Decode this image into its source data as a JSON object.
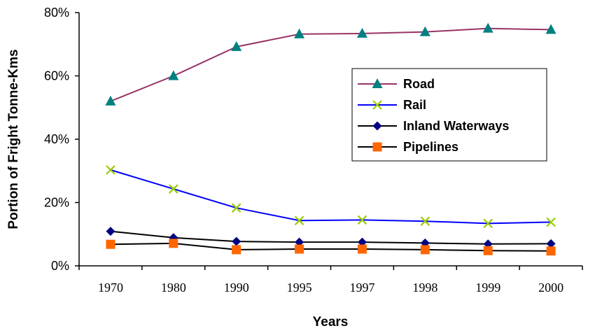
{
  "chart_data": {
    "type": "line",
    "categories": [
      "1970",
      "1980",
      "1990",
      "1995",
      "1997",
      "1998",
      "1999",
      "2000"
    ],
    "y_ticks": [
      "0%",
      "20%",
      "40%",
      "60%",
      "80%"
    ],
    "ylim": [
      0,
      80
    ],
    "xlabel": "Years",
    "ylabel": "Portion of Fright Tonne-Kms",
    "grid": false,
    "legend_position": "right",
    "series": [
      {
        "name": "Road",
        "color": "#993366",
        "marker": "triangle",
        "marker_color": "#008080",
        "values": [
          52,
          60,
          69.2,
          73.2,
          73.4,
          73.9,
          75,
          74.6
        ]
      },
      {
        "name": "Rail",
        "color": "#0000ff",
        "marker": "x",
        "marker_color": "#99cc00",
        "values": [
          30.3,
          24.3,
          18.3,
          14.3,
          14.5,
          14.1,
          13.4,
          13.8
        ]
      },
      {
        "name": "Inland Waterways",
        "color": "#000000",
        "marker": "diamond",
        "marker_color": "#000080",
        "values": [
          10.9,
          8.9,
          7.7,
          7.5,
          7.5,
          7.2,
          6.9,
          7
        ]
      },
      {
        "name": "Pipelines",
        "color": "#000000",
        "marker": "square",
        "marker_color": "#ff6600",
        "values": [
          6.8,
          7.1,
          5.1,
          5.3,
          5.3,
          5.1,
          4.8,
          4.7
        ]
      }
    ]
  }
}
